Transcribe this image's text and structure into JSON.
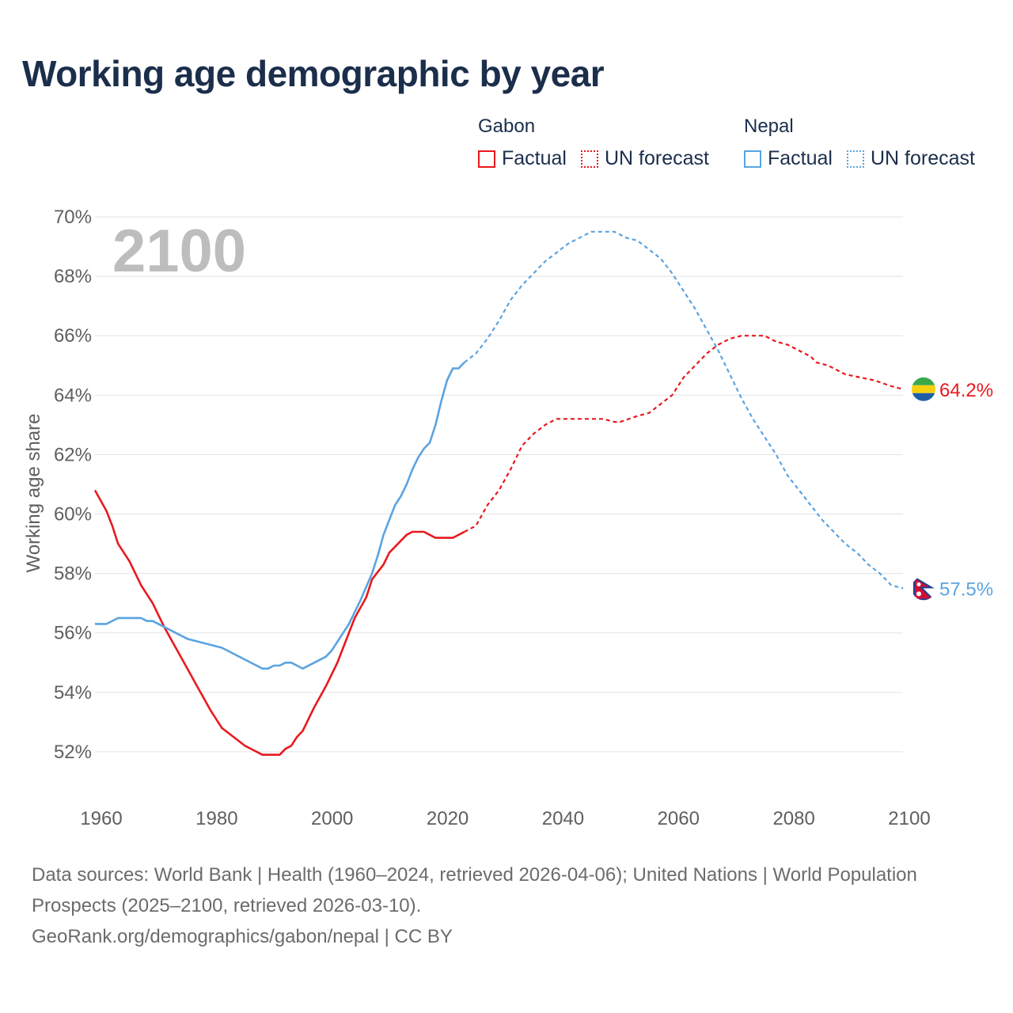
{
  "chart_data": {
    "type": "line",
    "title": "Working age demographic by year",
    "ylabel": "Working age share",
    "xlabel": "",
    "year_overlay": "2100",
    "xlim": [
      1960,
      2100
    ],
    "ylim": [
      50.4,
      70
    ],
    "x_ticks": [
      1960,
      1980,
      2000,
      2020,
      2040,
      2060,
      2080,
      2100
    ],
    "y_ticks": [
      52,
      54,
      56,
      58,
      60,
      62,
      64,
      66,
      68,
      70
    ],
    "y_tick_labels": [
      "52%",
      "54%",
      "56%",
      "58%",
      "60%",
      "62%",
      "64%",
      "66%",
      "68%",
      "70%"
    ],
    "x_tick_labels": [
      "1960",
      "1980",
      "2000",
      "2020",
      "2040",
      "2060",
      "2080",
      "2100"
    ],
    "factual_end_year": 2024,
    "series": [
      {
        "name": "Gabon",
        "color": "#e8191e",
        "end_label": "64.2%",
        "flag": "gabon-flag",
        "points": [
          [
            1960,
            60.8
          ],
          [
            1962,
            60.1
          ],
          [
            1963,
            59.6
          ],
          [
            1964,
            59.0
          ],
          [
            1965,
            58.7
          ],
          [
            1966,
            58.4
          ],
          [
            1968,
            57.6
          ],
          [
            1970,
            57.0
          ],
          [
            1971,
            56.6
          ],
          [
            1972,
            56.2
          ],
          [
            1974,
            55.5
          ],
          [
            1976,
            54.8
          ],
          [
            1978,
            54.1
          ],
          [
            1980,
            53.4
          ],
          [
            1982,
            52.8
          ],
          [
            1984,
            52.5
          ],
          [
            1986,
            52.2
          ],
          [
            1988,
            52.0
          ],
          [
            1989,
            51.9
          ],
          [
            1990,
            51.9
          ],
          [
            1991,
            51.9
          ],
          [
            1992,
            51.9
          ],
          [
            1993,
            52.1
          ],
          [
            1994,
            52.2
          ],
          [
            1995,
            52.5
          ],
          [
            1996,
            52.7
          ],
          [
            1998,
            53.5
          ],
          [
            2000,
            54.2
          ],
          [
            2002,
            55.0
          ],
          [
            2003,
            55.5
          ],
          [
            2005,
            56.5
          ],
          [
            2007,
            57.2
          ],
          [
            2008,
            57.8
          ],
          [
            2010,
            58.3
          ],
          [
            2011,
            58.7
          ],
          [
            2013,
            59.1
          ],
          [
            2014,
            59.3
          ],
          [
            2015,
            59.4
          ],
          [
            2017,
            59.4
          ],
          [
            2018,
            59.3
          ],
          [
            2019,
            59.2
          ],
          [
            2022,
            59.2
          ],
          [
            2024,
            59.4
          ],
          [
            2026,
            59.6
          ],
          [
            2028,
            60.3
          ],
          [
            2030,
            60.8
          ],
          [
            2032,
            61.5
          ],
          [
            2034,
            62.3
          ],
          [
            2036,
            62.7
          ],
          [
            2038,
            63.0
          ],
          [
            2040,
            63.2
          ],
          [
            2048,
            63.2
          ],
          [
            2050,
            63.1
          ],
          [
            2051,
            63.1
          ],
          [
            2054,
            63.3
          ],
          [
            2056,
            63.4
          ],
          [
            2058,
            63.7
          ],
          [
            2060,
            64.0
          ],
          [
            2062,
            64.6
          ],
          [
            2064,
            65.0
          ],
          [
            2066,
            65.4
          ],
          [
            2068,
            65.7
          ],
          [
            2070,
            65.9
          ],
          [
            2072,
            66.0
          ],
          [
            2076,
            66.0
          ],
          [
            2078,
            65.8
          ],
          [
            2080,
            65.7
          ],
          [
            2082,
            65.5
          ],
          [
            2084,
            65.3
          ],
          [
            2085,
            65.1
          ],
          [
            2087,
            65.0
          ],
          [
            2090,
            64.7
          ],
          [
            2095,
            64.5
          ],
          [
            2098,
            64.3
          ],
          [
            2100,
            64.2
          ]
        ]
      },
      {
        "name": "Nepal",
        "color": "#5ba3e0",
        "end_label": "57.5%",
        "flag": "nepal-flag",
        "points": [
          [
            1960,
            56.3
          ],
          [
            1962,
            56.3
          ],
          [
            1964,
            56.5
          ],
          [
            1966,
            56.5
          ],
          [
            1968,
            56.5
          ],
          [
            1969,
            56.4
          ],
          [
            1970,
            56.4
          ],
          [
            1972,
            56.2
          ],
          [
            1974,
            56.0
          ],
          [
            1976,
            55.8
          ],
          [
            1978,
            55.7
          ],
          [
            1980,
            55.6
          ],
          [
            1982,
            55.5
          ],
          [
            1984,
            55.3
          ],
          [
            1986,
            55.1
          ],
          [
            1988,
            54.9
          ],
          [
            1989,
            54.8
          ],
          [
            1990,
            54.8
          ],
          [
            1991,
            54.9
          ],
          [
            1992,
            54.9
          ],
          [
            1993,
            55.0
          ],
          [
            1994,
            55.0
          ],
          [
            1995,
            54.9
          ],
          [
            1996,
            54.8
          ],
          [
            1998,
            55.0
          ],
          [
            2000,
            55.2
          ],
          [
            2001,
            55.4
          ],
          [
            2002,
            55.7
          ],
          [
            2004,
            56.3
          ],
          [
            2006,
            57.1
          ],
          [
            2008,
            58.0
          ],
          [
            2009,
            58.6
          ],
          [
            2010,
            59.3
          ],
          [
            2012,
            60.3
          ],
          [
            2013,
            60.6
          ],
          [
            2014,
            61.0
          ],
          [
            2015,
            61.5
          ],
          [
            2016,
            61.9
          ],
          [
            2017,
            62.2
          ],
          [
            2018,
            62.4
          ],
          [
            2019,
            63.0
          ],
          [
            2020,
            63.8
          ],
          [
            2021,
            64.5
          ],
          [
            2022,
            64.9
          ],
          [
            2023,
            64.9
          ],
          [
            2024,
            65.1
          ],
          [
            2026,
            65.4
          ],
          [
            2028,
            65.9
          ],
          [
            2030,
            66.5
          ],
          [
            2032,
            67.2
          ],
          [
            2034,
            67.7
          ],
          [
            2036,
            68.1
          ],
          [
            2038,
            68.5
          ],
          [
            2040,
            68.8
          ],
          [
            2042,
            69.1
          ],
          [
            2044,
            69.3
          ],
          [
            2046,
            69.5
          ],
          [
            2050,
            69.5
          ],
          [
            2052,
            69.3
          ],
          [
            2054,
            69.2
          ],
          [
            2056,
            68.9
          ],
          [
            2058,
            68.6
          ],
          [
            2060,
            68.1
          ],
          [
            2062,
            67.5
          ],
          [
            2064,
            66.9
          ],
          [
            2066,
            66.2
          ],
          [
            2068,
            65.5
          ],
          [
            2070,
            64.7
          ],
          [
            2072,
            63.9
          ],
          [
            2074,
            63.2
          ],
          [
            2076,
            62.6
          ],
          [
            2078,
            62.0
          ],
          [
            2080,
            61.3
          ],
          [
            2082,
            60.8
          ],
          [
            2084,
            60.3
          ],
          [
            2086,
            59.8
          ],
          [
            2088,
            59.4
          ],
          [
            2090,
            59.0
          ],
          [
            2092,
            58.7
          ],
          [
            2094,
            58.3
          ],
          [
            2096,
            58.0
          ],
          [
            2098,
            57.6
          ],
          [
            2100,
            57.5
          ]
        ]
      }
    ]
  },
  "legend": {
    "groups": [
      {
        "name": "Gabon",
        "factual": "Factual",
        "forecast": "UN forecast",
        "color": "#e8191e"
      },
      {
        "name": "Nepal",
        "factual": "Factual",
        "forecast": "UN forecast",
        "color": "#5ba3e0"
      }
    ]
  },
  "footer": {
    "sources": "Data sources: World Bank | Health (1960–2024, retrieved 2026-04-06); United Nations | World Population Prospects (2025–2100, retrieved 2026-03-10).",
    "credit": "GeoRank.org/demographics/gabon/nepal | CC BY"
  }
}
